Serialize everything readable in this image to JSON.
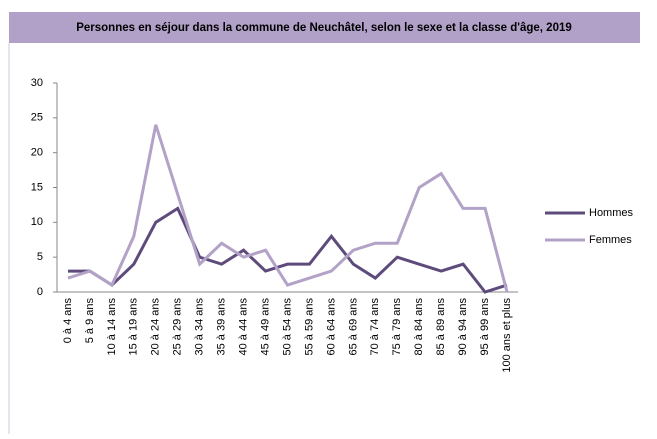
{
  "chart_data": {
    "type": "line",
    "title": "Personnes en séjour dans la commune de Neuchâtel, selon le sexe et la classe d'âge, 2019",
    "categories": [
      "0 à 4 ans",
      "5 à 9 ans",
      "10 à 14 ans",
      "15 à 19 ans",
      "20 à 24 ans",
      "25 à 29 ans",
      "30 à 34 ans",
      "35 à 39 ans",
      "40 à 44 ans",
      "45 à 49 ans",
      "50 à 54 ans",
      "55 à 59 ans",
      "60 à 64 ans",
      "65 à 69 ans",
      "70 à 74 ans",
      "75 à 79 ans",
      "80 à 84 ans",
      "85 à 89 ans",
      "90 à 94 ans",
      "95 à 99 ans",
      "100 ans et plus"
    ],
    "series": [
      {
        "name": "Hommes",
        "color": "#5e4b7c",
        "values": [
          3,
          3,
          1,
          4,
          10,
          12,
          5,
          4,
          6,
          3,
          4,
          4,
          8,
          4,
          2,
          5,
          4,
          3,
          4,
          0,
          1
        ]
      },
      {
        "name": "Femmes",
        "color": "#b3a2c7",
        "values": [
          2,
          3,
          1,
          8,
          24,
          14,
          4,
          7,
          5,
          6,
          1,
          2,
          3,
          6,
          7,
          7,
          15,
          17,
          12,
          12,
          0
        ]
      }
    ],
    "ylim": [
      0,
      30
    ],
    "yticks": [
      0,
      5,
      10,
      15,
      20,
      25,
      30
    ],
    "grid": false,
    "legend": "right"
  }
}
